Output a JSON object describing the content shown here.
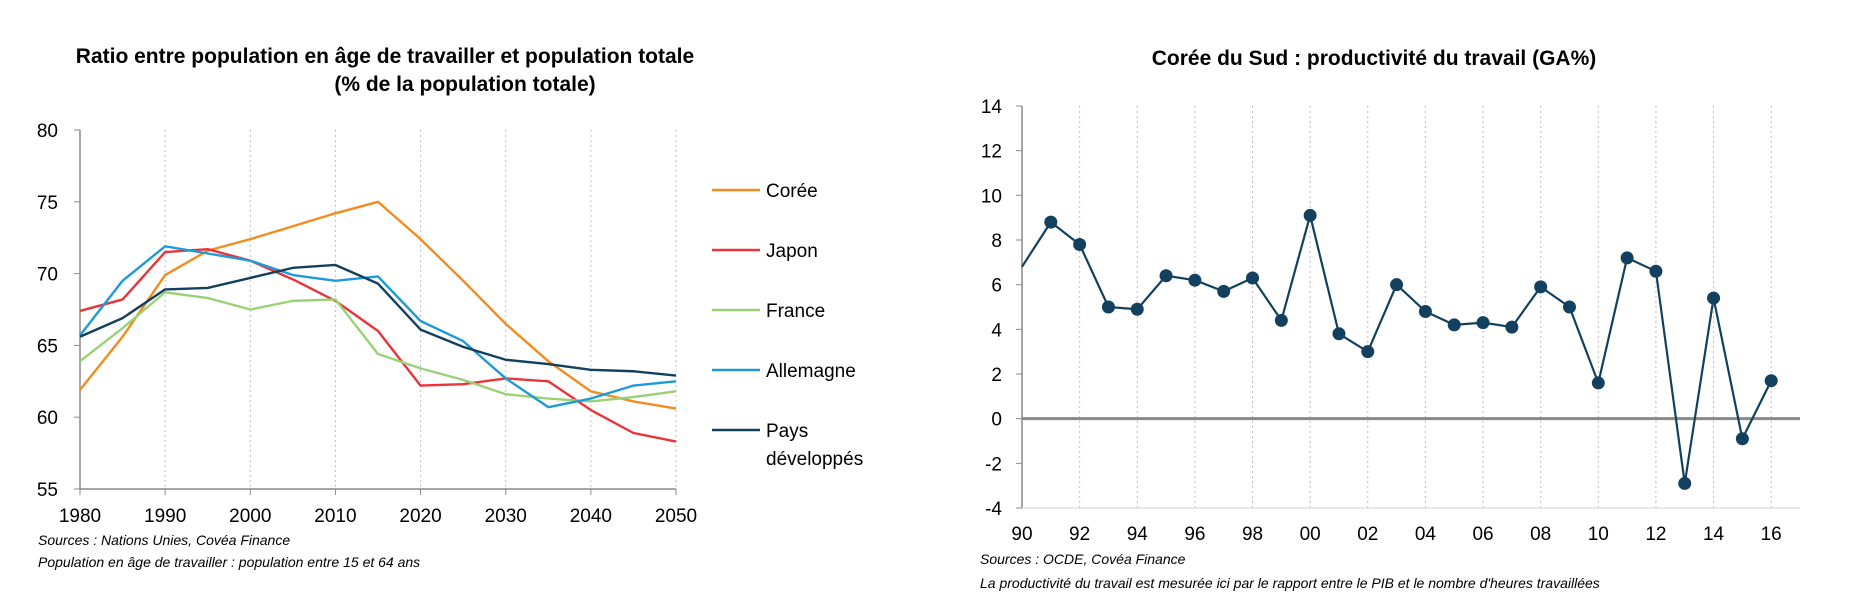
{
  "chart_data": [
    {
      "type": "line",
      "title_lines": [
        "Ratio entre population en âge de travailler et population totale",
        "(% de la population totale)"
      ],
      "xlim": [
        1980,
        2050
      ],
      "ylim": [
        55,
        80
      ],
      "x_ticks": [
        "1980",
        "1990",
        "2000",
        "2010",
        "2020",
        "2030",
        "2040",
        "2050"
      ],
      "y_ticks": [
        "55",
        "60",
        "65",
        "70",
        "75",
        "80"
      ],
      "x": [
        1980,
        1985,
        1990,
        1995,
        2000,
        2005,
        2010,
        2015,
        2020,
        2025,
        2030,
        2035,
        2040,
        2045,
        2050
      ],
      "grid": "vertical dotted",
      "series": [
        {
          "name": "Corée",
          "color": "#F28C1E",
          "values": [
            61.9,
            65.6,
            69.9,
            71.6,
            72.4,
            73.3,
            74.2,
            75.0,
            72.4,
            69.5,
            66.5,
            63.9,
            61.8,
            61.1,
            60.6
          ]
        },
        {
          "name": "Japon",
          "color": "#E8353A",
          "values": [
            67.4,
            68.2,
            71.5,
            71.7,
            70.9,
            69.6,
            68.1,
            66.0,
            62.2,
            62.3,
            62.7,
            62.5,
            60.5,
            58.9,
            58.3
          ]
        },
        {
          "name": "France",
          "color": "#9AD178",
          "values": [
            63.9,
            66.2,
            68.7,
            68.3,
            67.5,
            68.1,
            68.2,
            64.4,
            63.4,
            62.6,
            61.6,
            61.3,
            61.1,
            61.4,
            61.8
          ]
        },
        {
          "name": "Allemagne",
          "color": "#1E9BD7",
          "values": [
            65.7,
            69.5,
            71.9,
            71.4,
            70.9,
            69.9,
            69.5,
            69.8,
            66.7,
            65.3,
            62.7,
            60.7,
            61.3,
            62.2,
            62.5
          ]
        },
        {
          "name": "Pays développés",
          "legend_lines": [
            "Pays",
            "développés"
          ],
          "color": "#12405E",
          "values": [
            65.6,
            66.9,
            68.9,
            69.0,
            69.7,
            70.4,
            70.6,
            69.3,
            66.1,
            64.9,
            64.0,
            63.7,
            63.3,
            63.2,
            62.9
          ]
        }
      ],
      "notes": [
        "Sources : Nations Unies, Covéa Finance",
        "Population en âge de travailler : population entre 15 et 64 ans"
      ]
    },
    {
      "type": "line",
      "title": "Corée du Sud : productivité du travail (GA%)",
      "xlim": [
        1990,
        2017
      ],
      "ylim": [
        -4,
        14
      ],
      "x_ticks": [
        "90",
        "92",
        "94",
        "96",
        "98",
        "00",
        "02",
        "04",
        "06",
        "08",
        "10",
        "12",
        "14",
        "16"
      ],
      "y_ticks": [
        "-4",
        "-2",
        "0",
        "2",
        "4",
        "6",
        "8",
        "10",
        "12",
        "14"
      ],
      "grid": "vertical dotted",
      "series": [
        {
          "name": "Productivité du travail",
          "color": "#12405E",
          "x": [
            1990,
            1991,
            1992,
            1993,
            1994,
            1995,
            1996,
            1997,
            1998,
            1999,
            2000,
            2001,
            2002,
            2003,
            2004,
            2005,
            2006,
            2007,
            2008,
            2009,
            2010,
            2011,
            2012,
            2013,
            2014,
            2015,
            2016
          ],
          "values": [
            6.8,
            8.8,
            7.8,
            5.0,
            4.9,
            6.4,
            6.2,
            5.7,
            6.3,
            4.4,
            9.1,
            3.8,
            3.0,
            6.0,
            4.8,
            4.2,
            4.3,
            4.1,
            5.9,
            5.0,
            1.6,
            7.2,
            6.6,
            -2.9,
            5.4,
            -0.9,
            1.7
          ],
          "markers_from_index": 1
        }
      ],
      "notes": [
        "Sources : OCDE, Covéa Finance",
        "La productivité du travail est mesurée ici par le rapport entre le PIB et le nombre d'heures travaillées"
      ]
    }
  ]
}
